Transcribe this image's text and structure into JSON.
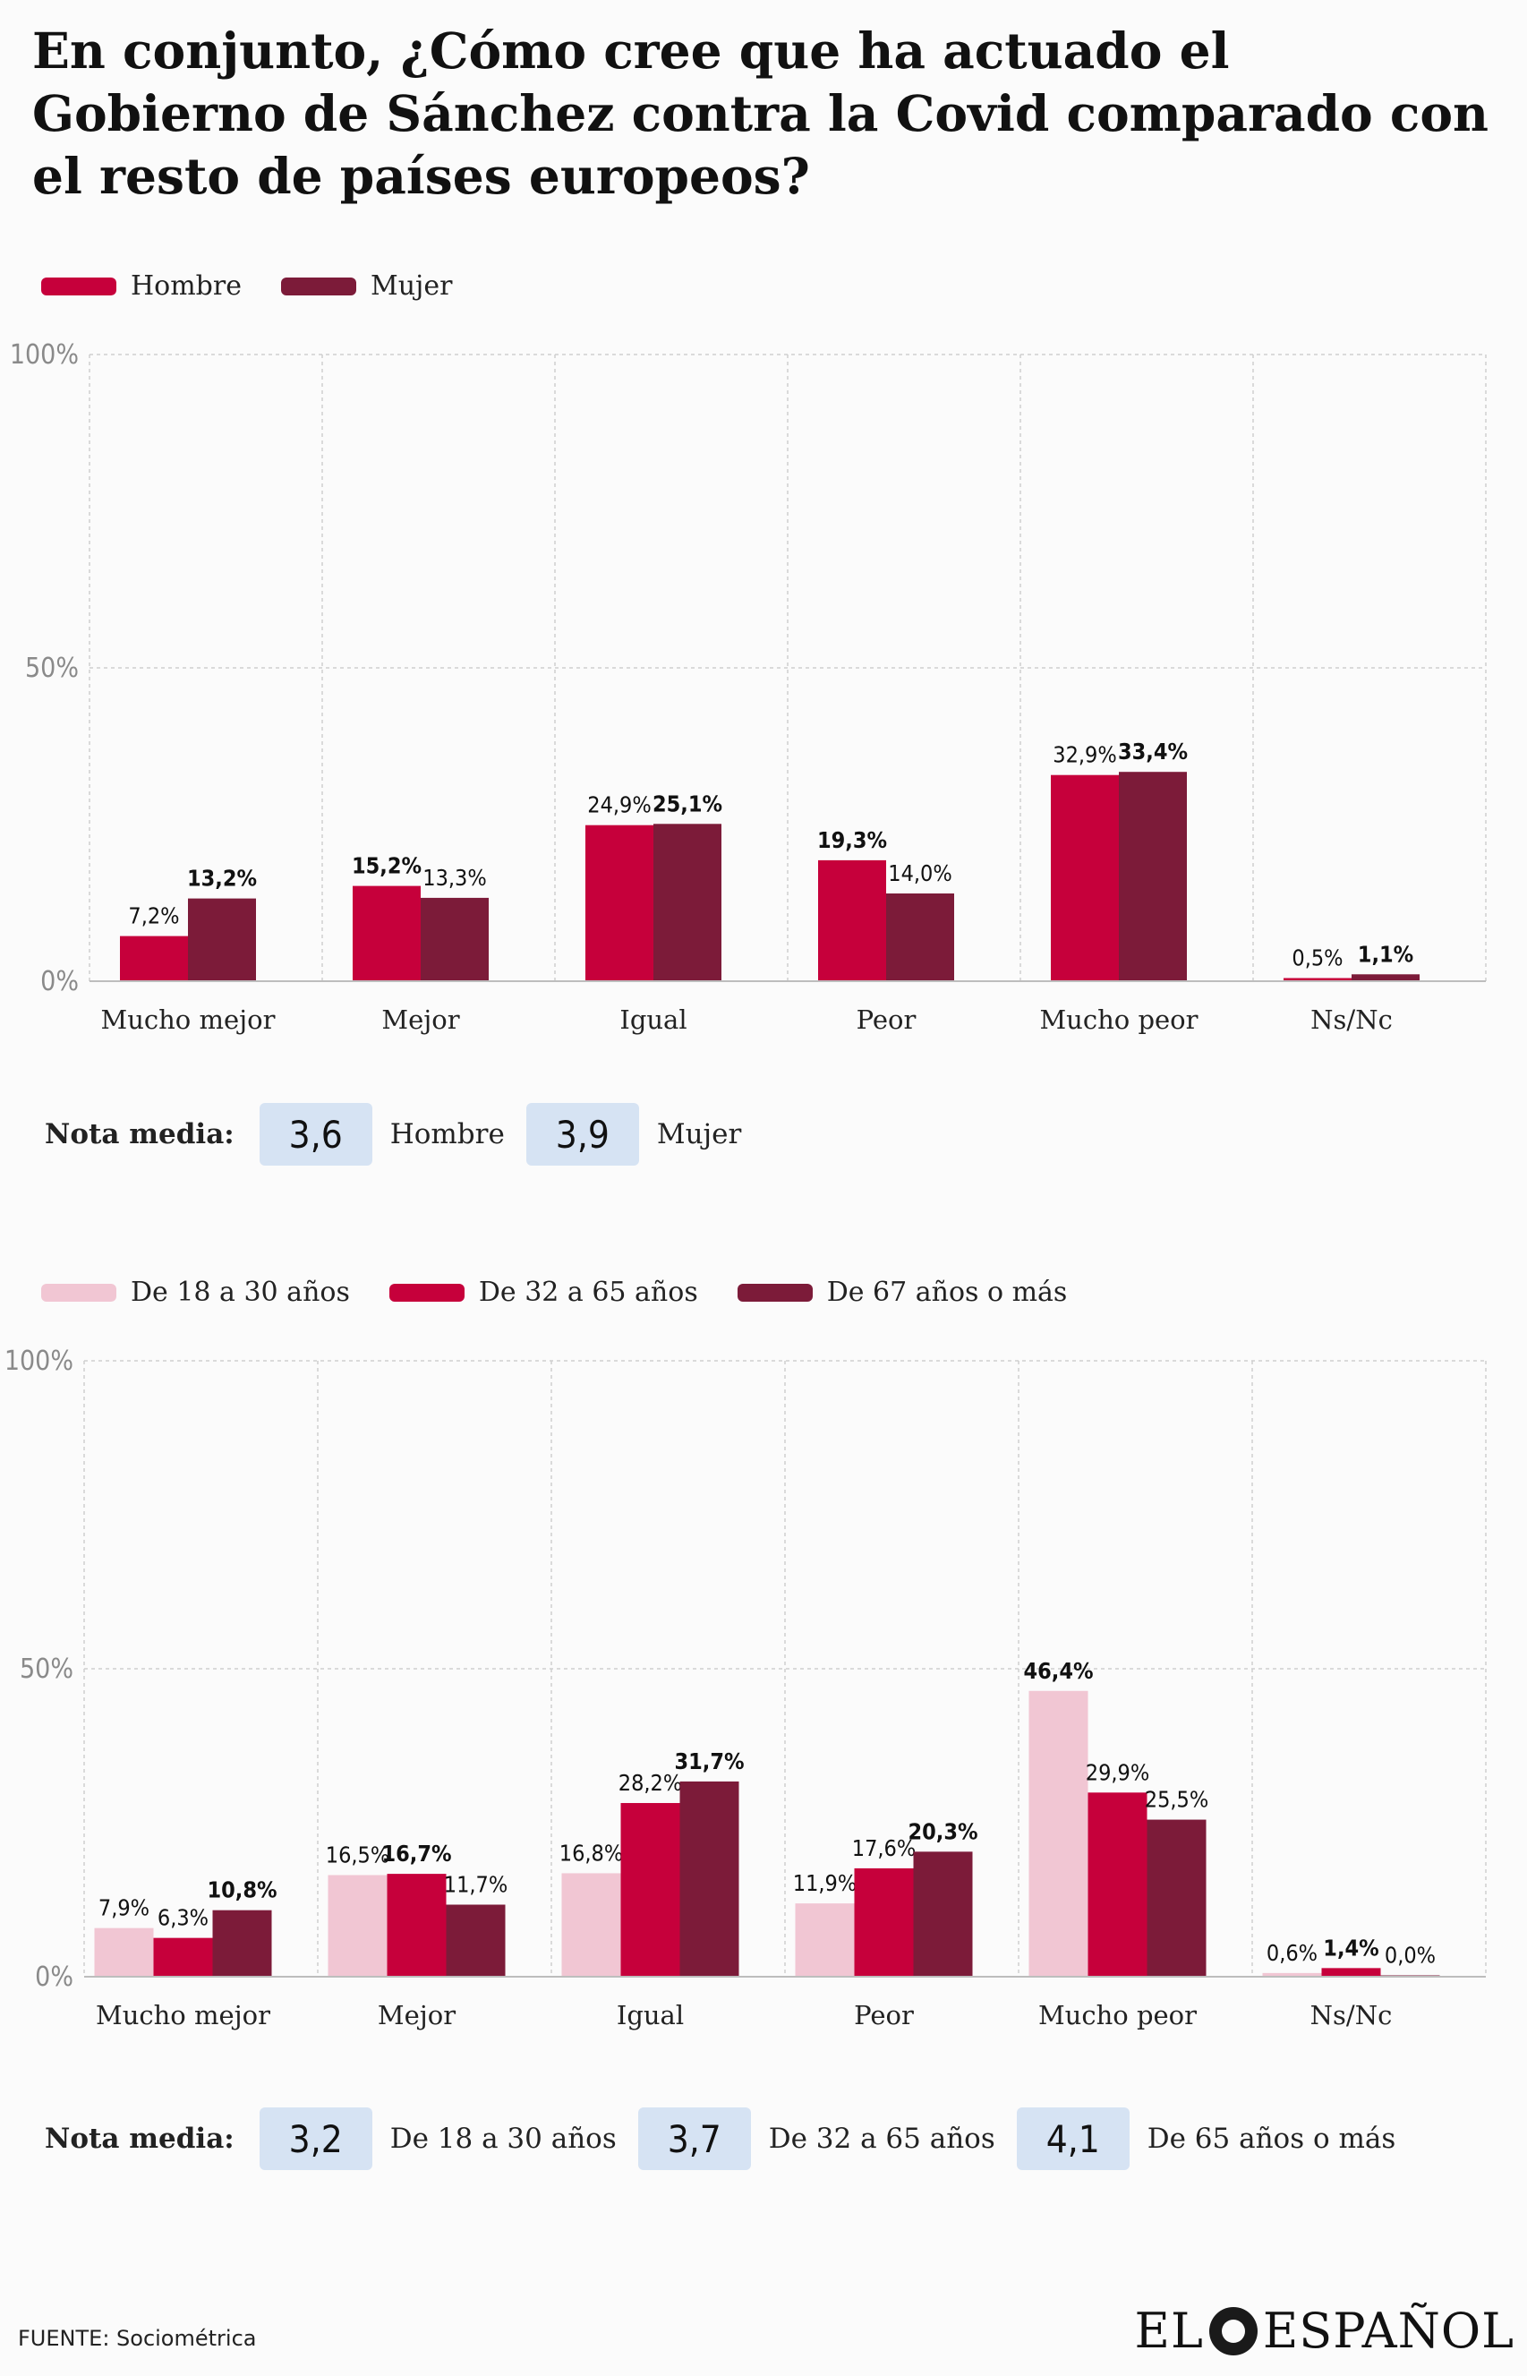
{
  "title": "En conjunto, ¿Cómo cree que ha actuado el Gobierno de Sánchez contra la Covid  comparado  con el resto de países europeos?",
  "chart1": {
    "legend": [
      {
        "label": "Hombre",
        "color": "#c6003b"
      },
      {
        "label": "Mujer",
        "color": "#7c1b39"
      }
    ]
  },
  "chart2": {
    "legend": [
      {
        "label": "De 18 a 30 años",
        "color": "#f1c6d3"
      },
      {
        "label": "De 32 a 65 años",
        "color": "#c6003b"
      },
      {
        "label": "De 67 años o más",
        "color": "#7c1b39"
      }
    ]
  },
  "nota1": {
    "label": "Nota media:",
    "items": [
      {
        "value": "3,6",
        "label": "Hombre"
      },
      {
        "value": "3,9",
        "label": "Mujer"
      }
    ]
  },
  "nota2": {
    "label": "Nota media:",
    "items": [
      {
        "value": "3,2",
        "label": "De 18 a 30 años"
      },
      {
        "value": "3,7",
        "label": "De 32 a 65 años"
      },
      {
        "value": "4,1",
        "label": "De 65 años o más"
      }
    ]
  },
  "source": "FUENTE: Sociométrica",
  "brand": {
    "left": "EL",
    "right": "ESPAÑOL"
  },
  "chart_data": [
    {
      "type": "bar",
      "categories": [
        "Mucho mejor",
        "Mejor",
        "Igual",
        "Peor",
        "Mucho peor",
        "Ns/Nc"
      ],
      "ylim": [
        0,
        100
      ],
      "yticks": [
        "0%",
        "50%",
        "100%"
      ],
      "grid": true,
      "series": [
        {
          "name": "Hombre",
          "color": "#c6003b",
          "values": [
            7.2,
            15.2,
            24.9,
            19.3,
            32.9,
            0.5
          ],
          "labels": [
            "7,2%",
            "15,2%",
            "24,9%",
            "19,3%",
            "32,9%",
            "0,5%"
          ]
        },
        {
          "name": "Mujer",
          "color": "#7c1b39",
          "values": [
            13.2,
            13.3,
            25.1,
            14.0,
            33.4,
            1.1
          ],
          "labels": [
            "13,2%",
            "13,3%",
            "25,1%",
            "14,0%",
            "33,4%",
            "1,1%"
          ]
        }
      ]
    },
    {
      "type": "bar",
      "categories": [
        "Mucho mejor",
        "Mejor",
        "Igual",
        "Peor",
        "Mucho peor",
        "Ns/Nc"
      ],
      "ylim": [
        0,
        100
      ],
      "yticks": [
        "0%",
        "50%",
        "100%"
      ],
      "grid": true,
      "series": [
        {
          "name": "De 18 a 30 años",
          "color": "#f1c6d3",
          "values": [
            7.9,
            16.5,
            16.8,
            11.9,
            46.4,
            0.6
          ],
          "labels": [
            "7,9%",
            "16,5%",
            "16,8%",
            "11,9%",
            "46,4%",
            "0,6%"
          ]
        },
        {
          "name": "De 32 a 65 años",
          "color": "#c6003b",
          "values": [
            6.3,
            16.7,
            28.2,
            17.6,
            29.9,
            1.4
          ],
          "labels": [
            "6,3%",
            "16,7%",
            "28,2%",
            "17,6%",
            "29,9%",
            "1,4%"
          ]
        },
        {
          "name": "De 67 años o más",
          "color": "#7c1b39",
          "values": [
            10.8,
            11.7,
            31.7,
            20.3,
            25.5,
            0.0
          ],
          "labels": [
            "10,8%",
            "11,7%",
            "31,7%",
            "20,3%",
            "25,5%",
            "0,0%"
          ]
        }
      ]
    }
  ]
}
